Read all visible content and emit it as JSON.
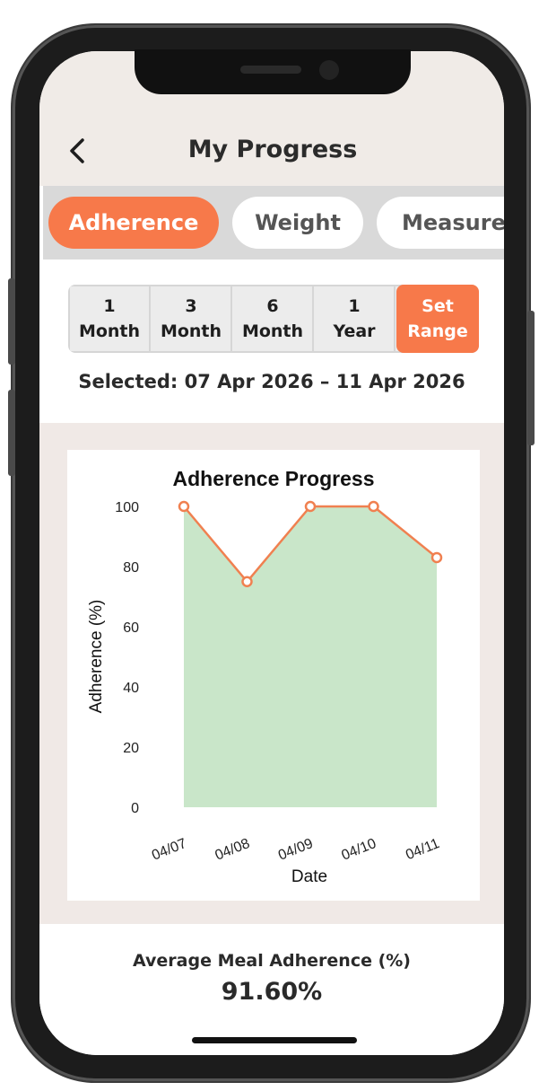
{
  "header": {
    "title": "My Progress"
  },
  "tabs": [
    {
      "label": "Adherence",
      "active": true
    },
    {
      "label": "Weight",
      "active": false
    },
    {
      "label": "Measurements",
      "active": false
    }
  ],
  "range": {
    "options": [
      {
        "top": "1",
        "bottom": "Month",
        "active": false
      },
      {
        "top": "3",
        "bottom": "Month",
        "active": false
      },
      {
        "top": "6",
        "bottom": "Month",
        "active": false
      },
      {
        "top": "1",
        "bottom": "Year",
        "active": false
      },
      {
        "top": "Set",
        "bottom": "Range",
        "active": true
      }
    ],
    "selected_text": "Selected: 07 Apr 2026 – 11 Apr 2026"
  },
  "colors": {
    "accent": "#f7794a",
    "line": "#f08050",
    "area": "#c9e6c9",
    "header_bg": "#f0ebe7"
  },
  "chart_data": {
    "type": "area",
    "title": "Adherence Progress",
    "xlabel": "Date",
    "ylabel": "Adherence (%)",
    "x": [
      "04/07",
      "04/08",
      "04/09",
      "04/10",
      "04/11"
    ],
    "series": [
      {
        "values": [
          100,
          75,
          100,
          100,
          83
        ]
      }
    ],
    "ylim": [
      0,
      100
    ],
    "yticks": [
      0,
      20,
      40,
      60,
      80,
      100
    ],
    "grid": false,
    "legend": "none"
  },
  "summary": {
    "label": "Average Meal Adherence (%)",
    "value": "91.60%"
  },
  "icons": {
    "back": "chevron-left-icon"
  }
}
